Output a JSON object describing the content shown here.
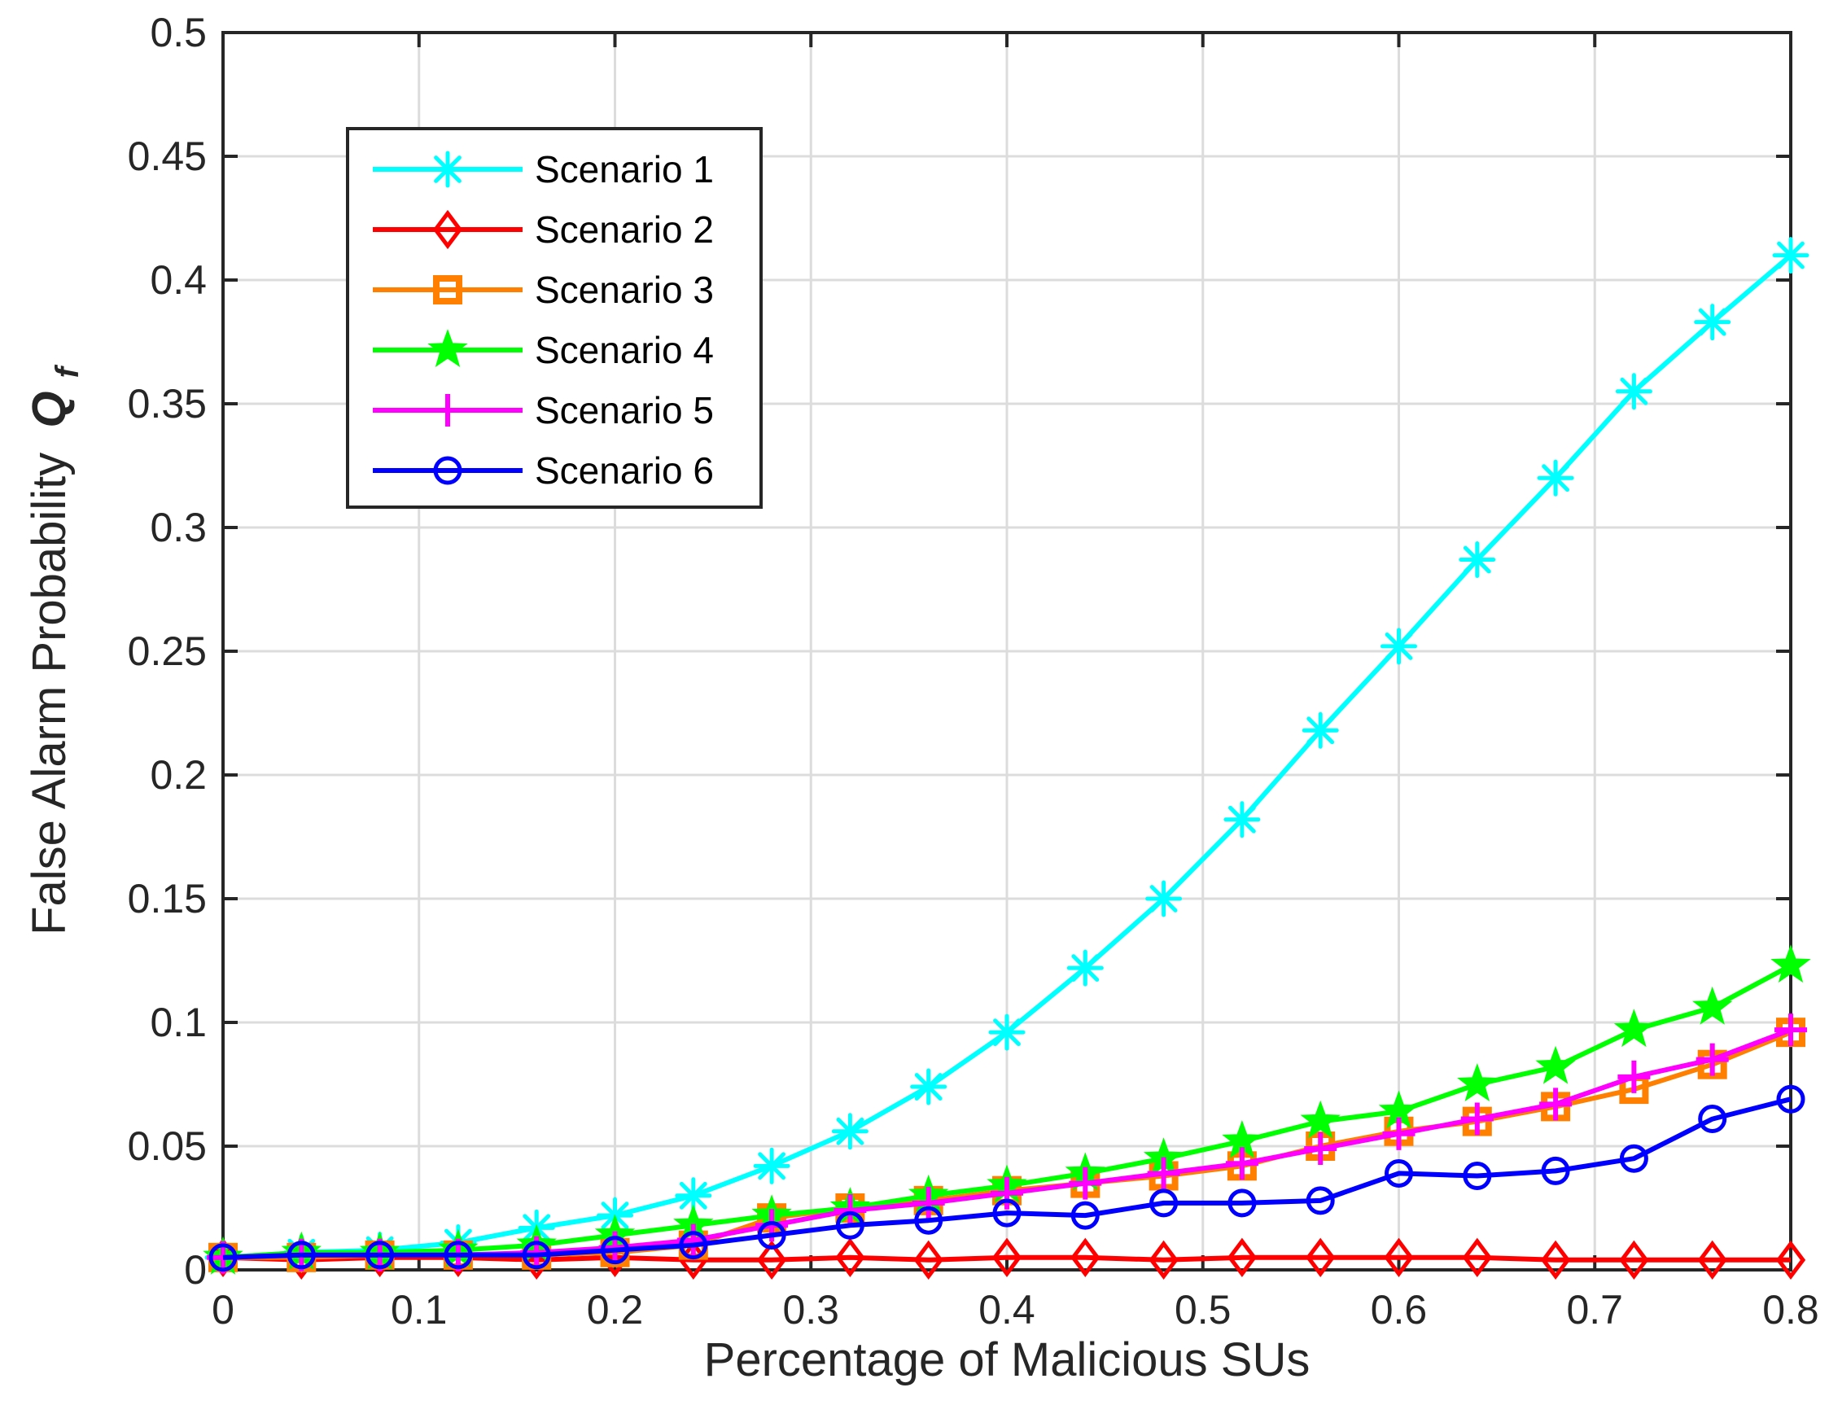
{
  "chart_data": {
    "type": "line",
    "title": "",
    "xlabel": "Percentage of Malicious SUs",
    "ylabel": "False Alarm Probability",
    "ylabel_symbol": "Q",
    "ylabel_subscript": "f",
    "xlim": [
      0,
      0.8
    ],
    "ylim": [
      0,
      0.5
    ],
    "xticks": [
      "0",
      "0.1",
      "0.2",
      "0.3",
      "0.4",
      "0.5",
      "0.6",
      "0.7",
      "0.8"
    ],
    "yticks": [
      "0",
      "0.05",
      "0.1",
      "0.15",
      "0.2",
      "0.25",
      "0.3",
      "0.35",
      "0.4",
      "0.45",
      "0.5"
    ],
    "grid": true,
    "legend_position": "top-left",
    "x": [
      0,
      0.04,
      0.08,
      0.12,
      0.16,
      0.2,
      0.24,
      0.28,
      0.32,
      0.36,
      0.4,
      0.44,
      0.48,
      0.52,
      0.56,
      0.6,
      0.64,
      0.68,
      0.72,
      0.76,
      0.8
    ],
    "series": [
      {
        "name": "Scenario 1",
        "color": "#00ffff",
        "marker": "asterisk",
        "values": [
          0.005,
          0.007,
          0.008,
          0.011,
          0.017,
          0.022,
          0.03,
          0.042,
          0.056,
          0.074,
          0.096,
          0.122,
          0.15,
          0.182,
          0.218,
          0.252,
          0.287,
          0.32,
          0.355,
          0.383,
          0.41
        ]
      },
      {
        "name": "Scenario 2",
        "color": "#ff0000",
        "marker": "diamond",
        "values": [
          0.005,
          0.004,
          0.005,
          0.005,
          0.004,
          0.005,
          0.004,
          0.004,
          0.005,
          0.004,
          0.005,
          0.005,
          0.004,
          0.005,
          0.005,
          0.005,
          0.005,
          0.004,
          0.004,
          0.004,
          0.004
        ]
      },
      {
        "name": "Scenario 3",
        "color": "#ff8000",
        "marker": "square",
        "values": [
          0.005,
          0.005,
          0.006,
          0.006,
          0.006,
          0.007,
          0.01,
          0.021,
          0.025,
          0.028,
          0.032,
          0.035,
          0.038,
          0.042,
          0.05,
          0.056,
          0.06,
          0.066,
          0.073,
          0.083,
          0.096
        ]
      },
      {
        "name": "Scenario 4",
        "color": "#00ff00",
        "marker": "pentagram",
        "values": [
          0.005,
          0.007,
          0.007,
          0.008,
          0.01,
          0.014,
          0.018,
          0.022,
          0.025,
          0.03,
          0.034,
          0.039,
          0.045,
          0.052,
          0.06,
          0.064,
          0.075,
          0.082,
          0.097,
          0.106,
          0.123
        ]
      },
      {
        "name": "Scenario 5",
        "color": "#ff00ff",
        "marker": "plus",
        "values": [
          0.005,
          0.006,
          0.006,
          0.006,
          0.007,
          0.009,
          0.012,
          0.018,
          0.024,
          0.027,
          0.031,
          0.035,
          0.039,
          0.043,
          0.049,
          0.055,
          0.061,
          0.067,
          0.078,
          0.085,
          0.097
        ]
      },
      {
        "name": "Scenario 6",
        "color": "#0000ff",
        "marker": "circle",
        "values": [
          0.005,
          0.006,
          0.006,
          0.006,
          0.006,
          0.008,
          0.01,
          0.014,
          0.018,
          0.02,
          0.023,
          0.022,
          0.027,
          0.027,
          0.028,
          0.039,
          0.038,
          0.04,
          0.045,
          0.061,
          0.069
        ]
      }
    ]
  }
}
